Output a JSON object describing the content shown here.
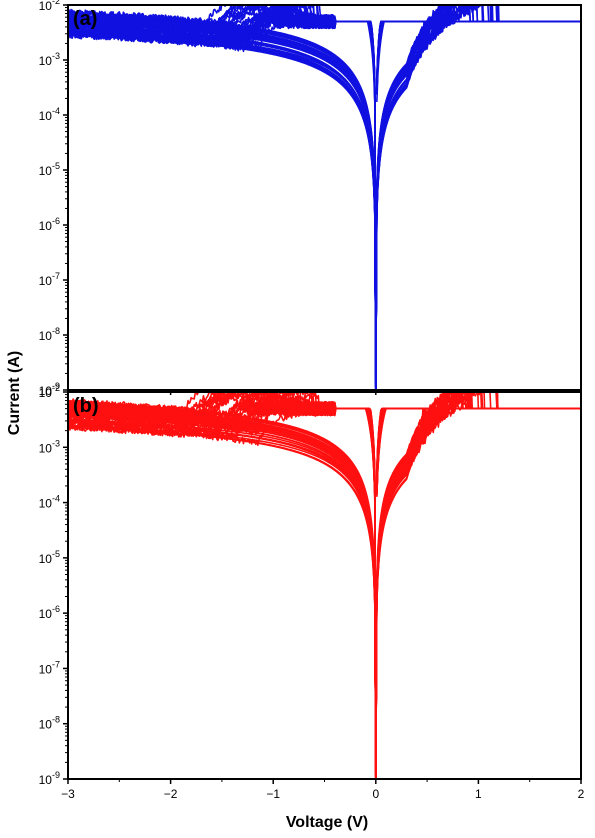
{
  "chart_data": {
    "type": "line",
    "ylabel": "Current (A)",
    "xlabel": "Voltage (V)",
    "yscale": "log",
    "legend": "none",
    "grid": false,
    "ylim": [
      1e-09,
      0.01
    ],
    "y_ticks": [
      {
        "value": 0.01,
        "base": "10",
        "exp": "-2"
      },
      {
        "value": 0.001,
        "base": "10",
        "exp": "-3"
      },
      {
        "value": 0.0001,
        "base": "10",
        "exp": "-4"
      },
      {
        "value": 1e-05,
        "base": "10",
        "exp": "-5"
      },
      {
        "value": 1e-06,
        "base": "10",
        "exp": "-6"
      },
      {
        "value": 1e-07,
        "base": "10",
        "exp": "-7"
      },
      {
        "value": 1e-08,
        "base": "10",
        "exp": "-8"
      },
      {
        "value": 1e-09,
        "base": "10",
        "exp": "-9"
      }
    ],
    "xlim": [
      -3,
      2
    ],
    "x_ticks": [
      {
        "value": -3,
        "label": "−3"
      },
      {
        "value": -2,
        "label": "−2"
      },
      {
        "value": -1,
        "label": "−1"
      },
      {
        "value": 0,
        "label": "0"
      },
      {
        "value": 1,
        "label": "1"
      },
      {
        "value": 2,
        "label": "2"
      }
    ],
    "panels": [
      {
        "label": "(a)",
        "color": "#1010e0",
        "compliance_current": 0.005,
        "min_current": 1.2e-09,
        "reset_voltage_range": [
          -1.1,
          -0.5
        ],
        "set_voltage_range": [
          0.45,
          1.2
        ],
        "cycles": 30
      },
      {
        "label": "(b)",
        "color": "#ff1010",
        "compliance_current": 0.005,
        "min_current": 1.2e-09,
        "reset_voltage_range": [
          -1.3,
          -0.5
        ],
        "set_voltage_range": [
          0.45,
          1.2
        ],
        "cycles": 30
      }
    ]
  }
}
